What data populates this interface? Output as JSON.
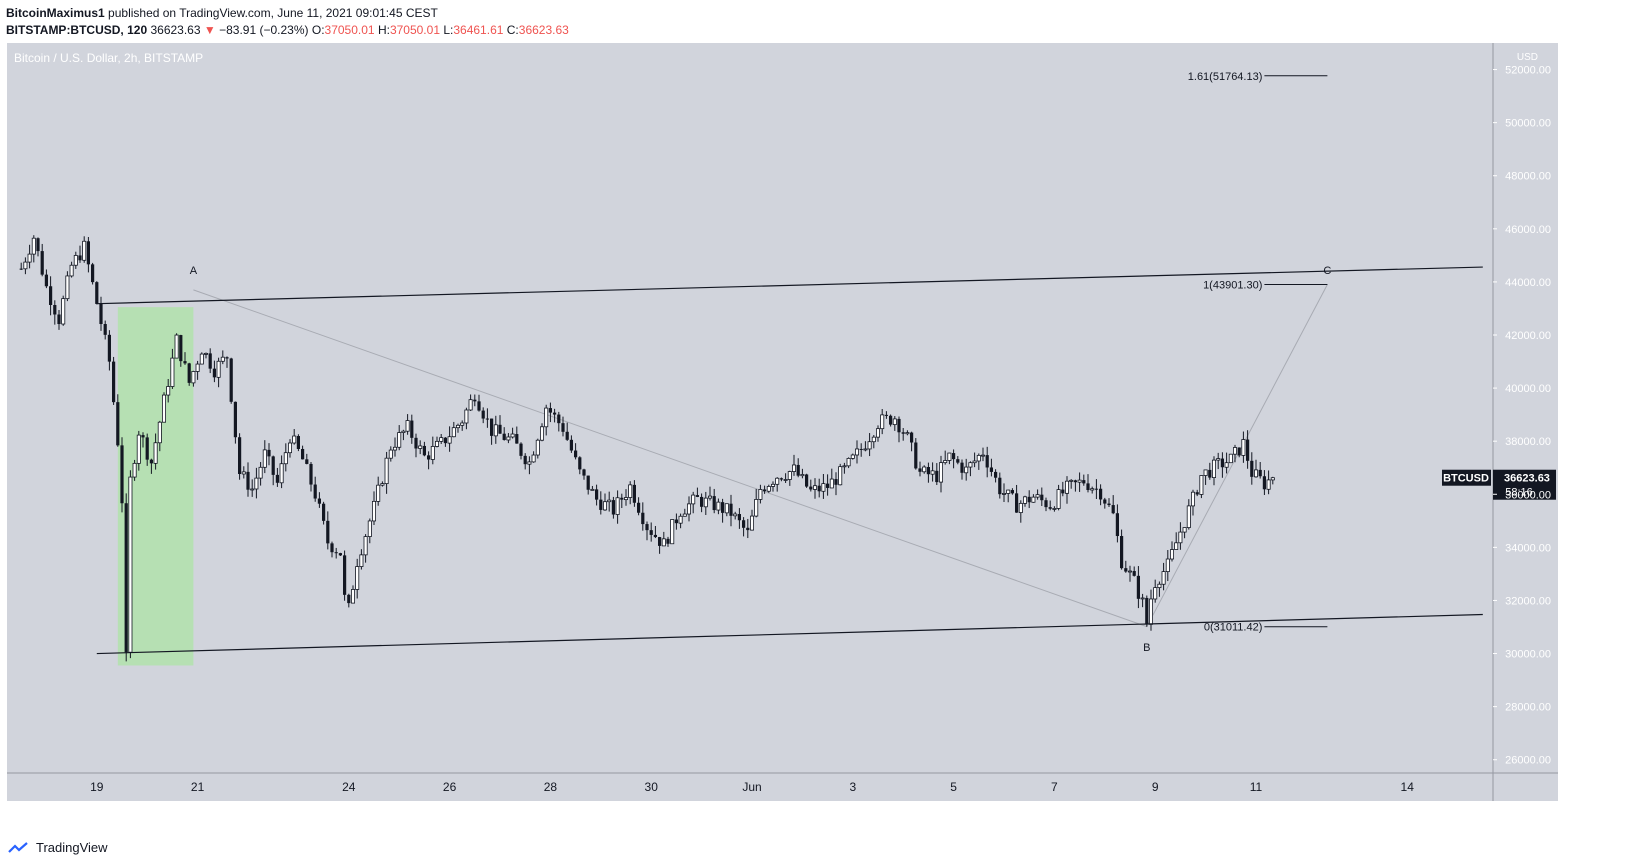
{
  "header": {
    "author": "BitcoinMaximus1",
    "published": "published on TradingView.com, June 11, 2021 09:01:45 CEST",
    "symbol": "BITSTAMP:BTCUSD, 120",
    "last": "36623.63",
    "change": "−83.91 (−0.23%)",
    "o_label": "O:",
    "o_value": "37050.01",
    "h_label": "H:",
    "h_value": "37050.01",
    "l_label": "L:",
    "l_value": "36461.61",
    "c_label": "C:",
    "c_value": "36623.63"
  },
  "footer": {
    "brand": "TradingView"
  },
  "colors": {
    "background": "#d1d4dc",
    "candle": "#131722",
    "zone": "#b6e0b3",
    "price_tag": "#131722"
  },
  "chart_data": {
    "type": "candlestick",
    "title": "Bitcoin / U.S. Dollar, 2h, BITSTAMP",
    "currency": "USD",
    "ylim": [
      25500,
      53000
    ],
    "y_ticks": [
      26000,
      28000,
      30000,
      32000,
      34000,
      36000,
      38000,
      40000,
      42000,
      44000,
      46000,
      48000,
      50000,
      52000
    ],
    "x_ticks": [
      "19",
      "21",
      "24",
      "26",
      "28",
      "30",
      "Jun",
      "3",
      "5",
      "7",
      "9",
      "11",
      "14"
    ],
    "close_path": [
      {
        "d": "May 17 12:00",
        "p": 44500
      },
      {
        "d": "May 17 18:00",
        "p": 45700
      },
      {
        "d": "May 18 00:00",
        "p": 43800
      },
      {
        "d": "May 18 06:00",
        "p": 42600
      },
      {
        "d": "May 18 12:00",
        "p": 44600
      },
      {
        "d": "May 18 18:00",
        "p": 45300
      },
      {
        "d": "May 19 00:00",
        "p": 43200
      },
      {
        "d": "May 19 06:00",
        "p": 41000
      },
      {
        "d": "May 19 10:00",
        "p": 38000
      },
      {
        "d": "May 19 12:00",
        "p": 35800
      },
      {
        "d": "May 19 14:00",
        "p": 30050
      },
      {
        "d": "May 19 16:00",
        "p": 36500
      },
      {
        "d": "May 19 20:00",
        "p": 38400
      },
      {
        "d": "May 20 02:00",
        "p": 37200
      },
      {
        "d": "May 20 08:00",
        "p": 39500
      },
      {
        "d": "May 20 14:00",
        "p": 41800
      },
      {
        "d": "May 20 20:00",
        "p": 40200
      },
      {
        "d": "May 21 02:00",
        "p": 41500
      },
      {
        "d": "May 21 08:00",
        "p": 40700
      },
      {
        "d": "May 21 14:00",
        "p": 41200
      },
      {
        "d": "May 21 20:00",
        "p": 36800
      },
      {
        "d": "May 22 02:00",
        "p": 36200
      },
      {
        "d": "May 22 08:00",
        "p": 37500
      },
      {
        "d": "May 22 14:00",
        "p": 36400
      },
      {
        "d": "May 22 20:00",
        "p": 38200
      },
      {
        "d": "May 23 02:00",
        "p": 37300
      },
      {
        "d": "May 23 08:00",
        "p": 36000
      },
      {
        "d": "May 23 14:00",
        "p": 34200
      },
      {
        "d": "May 23 20:00",
        "p": 33800
      },
      {
        "d": "May 23 23:00",
        "p": 31200
      },
      {
        "d": "May 24 04:00",
        "p": 33500
      },
      {
        "d": "May 24 12:00",
        "p": 35500
      },
      {
        "d": "May 24 20:00",
        "p": 37800
      },
      {
        "d": "May 25 04:00",
        "p": 38500
      },
      {
        "d": "May 25 12:00",
        "p": 37400
      },
      {
        "d": "May 25 20:00",
        "p": 37900
      },
      {
        "d": "May 26 06:00",
        "p": 38800
      },
      {
        "d": "May 26 12:00",
        "p": 39800
      },
      {
        "d": "May 26 20:00",
        "p": 38400
      },
      {
        "d": "May 27 06:00",
        "p": 38000
      },
      {
        "d": "May 27 14:00",
        "p": 37200
      },
      {
        "d": "May 27 22:00",
        "p": 39300
      },
      {
        "d": "May 28 06:00",
        "p": 38500
      },
      {
        "d": "May 28 14:00",
        "p": 36800
      },
      {
        "d": "May 28 22:00",
        "p": 35800
      },
      {
        "d": "May 29 06:00",
        "p": 35400
      },
      {
        "d": "May 29 14:00",
        "p": 36300
      },
      {
        "d": "May 29 22:00",
        "p": 34800
      },
      {
        "d": "May 30 06:00",
        "p": 34100
      },
      {
        "d": "May 30 14:00",
        "p": 35400
      },
      {
        "d": "May 30 22:00",
        "p": 35800
      },
      {
        "d": "May 31 06:00",
        "p": 35600
      },
      {
        "d": "May 31 14:00",
        "p": 35300
      },
      {
        "d": "May 31 22:00",
        "p": 34500
      },
      {
        "d": "Jun 1 04:00",
        "p": 36200
      },
      {
        "d": "Jun 1 12:00",
        "p": 36700
      },
      {
        "d": "Jun 1 20:00",
        "p": 36900
      },
      {
        "d": "Jun 2 04:00",
        "p": 36100
      },
      {
        "d": "Jun 2 12:00",
        "p": 36300
      },
      {
        "d": "Jun 2 20:00",
        "p": 36900
      },
      {
        "d": "Jun 3 04:00",
        "p": 37700
      },
      {
        "d": "Jun 3 12:00",
        "p": 38700
      },
      {
        "d": "Jun 3 20:00",
        "p": 38900
      },
      {
        "d": "Jun 4 02:00",
        "p": 38100
      },
      {
        "d": "Jun 4 08:00",
        "p": 36800
      },
      {
        "d": "Jun 4 16:00",
        "p": 36700
      },
      {
        "d": "Jun 4 22:00",
        "p": 37400
      },
      {
        "d": "Jun 5 06:00",
        "p": 36900
      },
      {
        "d": "Jun 5 14:00",
        "p": 37600
      },
      {
        "d": "Jun 5 22:00",
        "p": 36200
      },
      {
        "d": "Jun 6 06:00",
        "p": 35600
      },
      {
        "d": "Jun 6 14:00",
        "p": 35900
      },
      {
        "d": "Jun 6 22:00",
        "p": 35600
      },
      {
        "d": "Jun 7 06:00",
        "p": 36200
      },
      {
        "d": "Jun 7 14:00",
        "p": 36500
      },
      {
        "d": "Jun 7 22:00",
        "p": 36100
      },
      {
        "d": "Jun 8 04:00",
        "p": 35200
      },
      {
        "d": "Jun 8 08:00",
        "p": 33500
      },
      {
        "d": "Jun 8 14:00",
        "p": 32700
      },
      {
        "d": "Jun 8 20:00",
        "p": 31500
      },
      {
        "d": "Jun 9 00:00",
        "p": 32700
      },
      {
        "d": "Jun 9 06:00",
        "p": 33300
      },
      {
        "d": "Jun 9 12:00",
        "p": 34600
      },
      {
        "d": "Jun 9 18:00",
        "p": 35800
      },
      {
        "d": "Jun 9 22:00",
        "p": 36700
      },
      {
        "d": "Jun 10 06:00",
        "p": 37100
      },
      {
        "d": "Jun 10 12:00",
        "p": 37300
      },
      {
        "d": "Jun 10 18:00",
        "p": 37900
      },
      {
        "d": "Jun 10 22:00",
        "p": 36800
      },
      {
        "d": "Jun 11 04:00",
        "p": 36400
      },
      {
        "d": "Jun 11 08:00",
        "p": 36623.63
      }
    ],
    "channel": {
      "upper": [
        {
          "d": "May 19 00:00",
          "p": 43180
        },
        {
          "d": "Jun 15 12:00",
          "p": 44560
        }
      ],
      "lower": [
        {
          "d": "May 19 00:00",
          "p": 30000
        },
        {
          "d": "Jun 15 12:00",
          "p": 31470
        }
      ]
    },
    "zone": {
      "d1": "May 19 10:00",
      "d2": "May 20 22:00",
      "p1": 29550,
      "p2": 43050
    },
    "projection": [
      {
        "d": "May 20 22:00",
        "p": 43700
      },
      {
        "d": "Jun 8 20:00",
        "p": 31011.42
      },
      {
        "d": "Jun 12 10:00",
        "p": 43901.3
      }
    ],
    "wave_labels": [
      {
        "text": "A",
        "d": "May 20 22:00",
        "p": 44450
      },
      {
        "text": "B",
        "d": "Jun 8 20:00",
        "p": 30250
      },
      {
        "text": "C",
        "d": "Jun 12 10:00",
        "p": 44450
      }
    ],
    "fib_levels": [
      {
        "label": "1.61(51764.13)",
        "p": 51764.13
      },
      {
        "label": "1(43901.30)",
        "p": 43901.3
      },
      {
        "label": "0(31011.42)",
        "p": 31011.42
      }
    ],
    "last_price": {
      "symbol": "BTCUSD",
      "price": "36623.63",
      "countdown": "58:16",
      "value": 36623.63
    }
  }
}
